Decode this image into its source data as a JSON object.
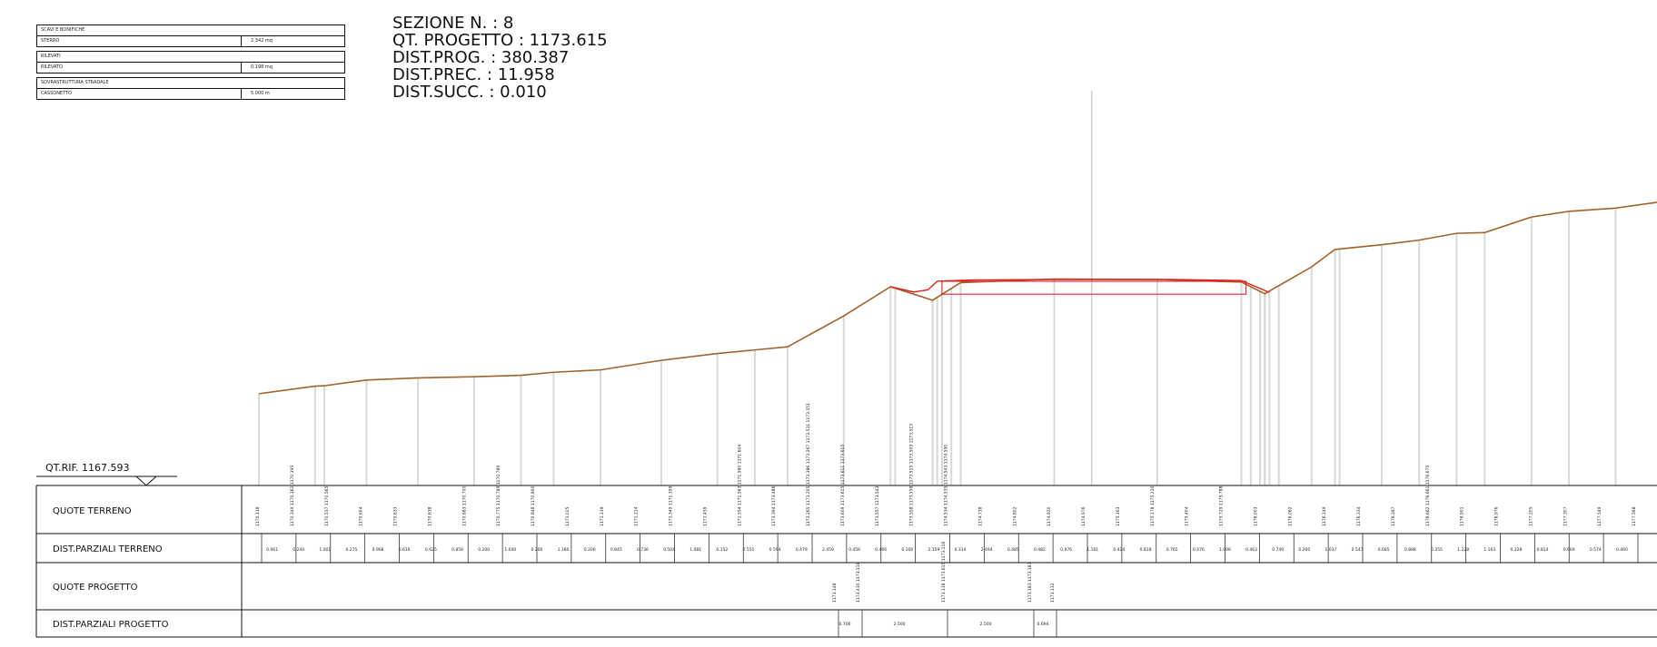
{
  "section": {
    "title": "SEZIONE N. : 8",
    "qt_progetto": "QT. PROGETTO : 1173.615",
    "dist_prog": "DIST.PROG. : 380.387",
    "dist_prec": "DIST.PREC. : 11.958",
    "dist_succ": "DIST.SUCC. : 0.010"
  },
  "legend": [
    {
      "title": "SCAVI E BONIFICHE",
      "label": "STERRO",
      "value": "2.342 mq"
    },
    {
      "title": "RILEVATI",
      "label": "RILEVATO",
      "value": "0.198 mq"
    },
    {
      "title": "SOVRASTRUTTURA STRADALE",
      "label": "CASSONETTO",
      "value": "5.000 m"
    }
  ],
  "qt_rif": "QT.RIF. 1167.593",
  "row_labels": {
    "quote_terreno": "QUOTE TERRENO",
    "dist_terreno": "DIST.PARZIALI TERRENO",
    "quote_progetto": "QUOTE PROGETTO",
    "dist_progetto": "DIST.PARZIALI PROGETTO"
  },
  "colors": {
    "terrain": "#a0622a",
    "design": "#e02020",
    "grid": "#111111",
    "stations": "#d8d8d8"
  },
  "terrain_points": [
    [
      0,
      1170.118
    ],
    [
      1.2,
      1170.349
    ],
    [
      1.4,
      1170.362
    ],
    [
      2.3,
      1170.537
    ],
    [
      3.4,
      1170.604
    ],
    [
      4.6,
      1170.638
    ],
    [
      5.6,
      1170.683
    ],
    [
      6.3,
      1170.775
    ],
    [
      7.3,
      1170.848
    ],
    [
      8.6,
      1171.139
    ],
    [
      9.8,
      1171.349
    ],
    [
      10.6,
      1171.459
    ],
    [
      11.3,
      1171.554
    ],
    [
      12.5,
      1172.5
    ],
    [
      13.5,
      1173.394
    ],
    [
      14.4,
      1172.98
    ],
    [
      15.0,
      1173.519
    ],
    [
      17.0,
      1173.629
    ],
    [
      19.2,
      1173.615
    ],
    [
      21.0,
      1173.537
    ],
    [
      21.5,
      1173.18
    ],
    [
      22.5,
      1174.0
    ],
    [
      23.0,
      1174.534
    ],
    [
      24.0,
      1174.68
    ],
    [
      24.8,
      1174.82
    ],
    [
      25.6,
      1175.028
    ],
    [
      26.2,
      1175.05
    ],
    [
      27.2,
      1175.529
    ],
    [
      28.0,
      1175.7
    ],
    [
      29.0,
      1175.8
    ],
    [
      30.0,
      1176.0
    ],
    [
      31.5,
      1176.304
    ],
    [
      32.5,
      1176.5
    ],
    [
      33.5,
      1176.8
    ],
    [
      34.5,
      1177.17
    ]
  ],
  "design_points": [
    [
      13.5,
      1173.394
    ],
    [
      14.0,
      1173.23
    ],
    [
      14.3,
      1173.3
    ],
    [
      14.5,
      1173.56
    ],
    [
      15.2,
      1173.6
    ],
    [
      17.0,
      1173.615
    ],
    [
      19.5,
      1173.615
    ],
    [
      21.0,
      1173.58
    ],
    [
      21.3,
      1173.4
    ],
    [
      21.6,
      1173.22
    ]
  ],
  "quote_terreno_values": [
    "1170.118",
    "1170.349 1170.362 1170.395",
    "1170.537 1170.565",
    "1170.604",
    "1170.633",
    "1170.638",
    "1170.683 1170.700",
    "1170.775 1170.789 1170.789",
    "1170.848 1170.900",
    "1171.025",
    "1171.139",
    "1171.214",
    "1171.349 1171.399",
    "1171.459",
    "1171.554 1171.563 1171.580 1171.604",
    "1173.394 1173.486",
    "1173.265 1173.205 1173.386 1173.267 1173.531 1173.551",
    "1173.609 1173.615 1173.611 1173.615",
    "1173.557 1173.543",
    "1173.558 1173.558 1173.515 1173.509 1173.513",
    "1174.534 1174.535 1174.543 1174.590",
    "1174.738",
    "1174.802",
    "1174.920",
    "1174.976",
    "1175.163",
    "1175.178 1175.210",
    "1175.404",
    "1175.729 1175.788",
    "1176.003",
    "1176.062",
    "1176.149",
    "1176.334",
    "1176.397",
    "1176.662 1176.661 1176.675",
    "1176.901",
    "1176.976",
    "1177.205",
    "1177.307",
    "1177.549",
    "1177.568"
  ],
  "dist_terreno_values": [
    "0.961",
    "0.240",
    "1.001",
    "0.275",
    "0.968",
    "0.616",
    "0.625",
    "0.858",
    "0.200",
    "1.040",
    "0.200",
    "1.180",
    "0.200",
    "0.845",
    "0.736",
    "0.504",
    "1.081",
    "0.152",
    "0.551",
    "0.594",
    "0.479",
    "2.459",
    "0.456",
    "0.466",
    "0.100",
    "2.159",
    "0.314",
    "2.494",
    "0.485",
    "0.482",
    "0.976",
    "1.161",
    "0.424",
    "0.818",
    "0.765",
    "0.476",
    "1.006",
    "0.463",
    "0.749",
    "0.200",
    "1.037",
    "0.547",
    "0.685",
    "0.888",
    "0.355",
    "1.228",
    "1.163",
    "0.328",
    "0.814",
    "0.669",
    "0.574",
    "0.460"
  ],
  "quote_progetto_values": [
    "1173.148",
    "1173.430 1173.118",
    "1173.118 1173.615 1173.118",
    "1173.183 1173.183",
    "1173.132"
  ],
  "dist_progetto_values": [
    "0.706",
    "2.500",
    "2.500",
    "0.694"
  ]
}
